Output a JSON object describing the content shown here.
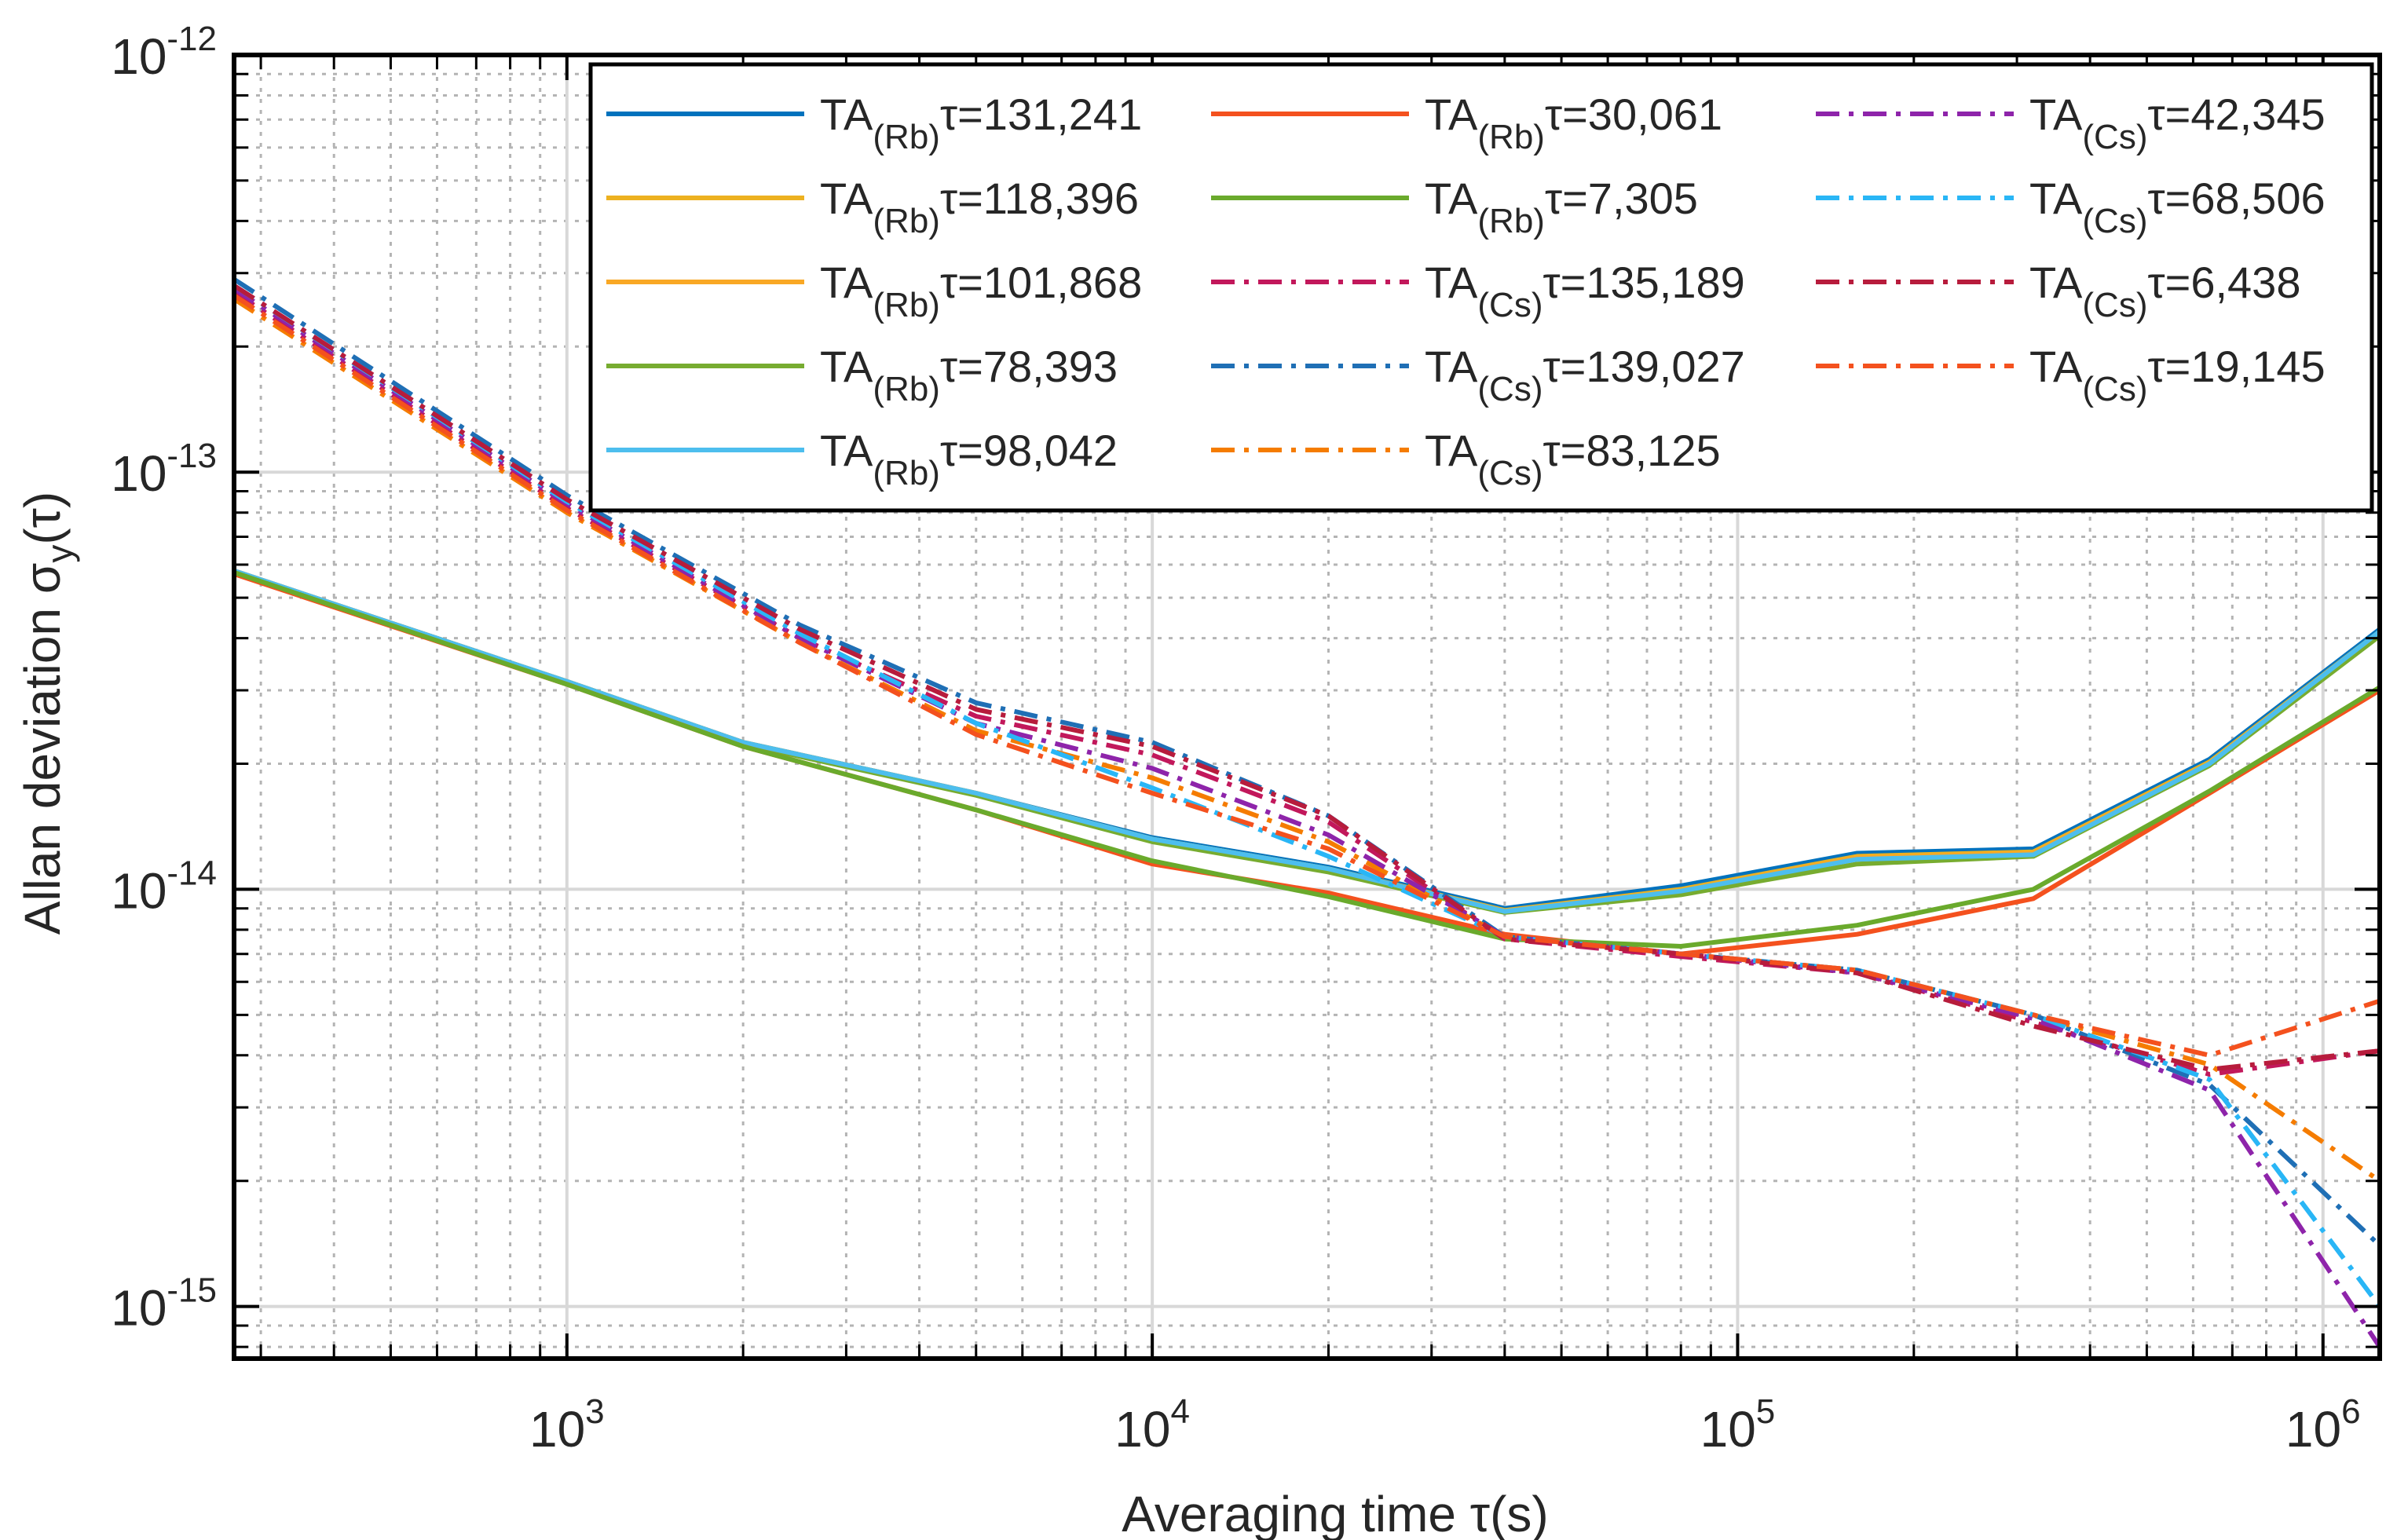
{
  "chart_data": {
    "type": "line",
    "scale": "log-log",
    "xlabel": "Averaging time τ(s)",
    "ylabel": "Allan deviation σ",
    "ylabel_sub": "y",
    "ylabel_tail": "(τ)",
    "xlim": [
      270,
      1250000
    ],
    "ylim": [
      7.5e-16,
      1e-12
    ],
    "grid": true,
    "x_ticks": [
      {
        "value": 1000,
        "base": "10",
        "exp": "3"
      },
      {
        "value": 10000,
        "base": "10",
        "exp": "4"
      },
      {
        "value": 100000,
        "base": "10",
        "exp": "5"
      },
      {
        "value": 1000000,
        "base": "10",
        "exp": "6"
      }
    ],
    "y_ticks": [
      {
        "value": 1e-12,
        "base": "10",
        "exp": "-12"
      },
      {
        "value": 1e-13,
        "base": "10",
        "exp": "-13"
      },
      {
        "value": 1e-14,
        "base": "10",
        "exp": "-14"
      },
      {
        "value": 1e-15,
        "base": "10",
        "exp": "-15"
      }
    ],
    "legend_position": "top-right",
    "series": [
      {
        "name": "TA",
        "sub": "(Rb)",
        "tail": "τ=131,241",
        "color": "#0072BD",
        "style": "solid",
        "x": [
          270,
          1000,
          2000,
          5000,
          10000,
          20000,
          40000,
          80000,
          160000,
          320000,
          640000,
          1250000
        ],
        "y": [
          5.8e-14,
          3.15e-14,
          2.25e-14,
          1.7e-14,
          1.33e-14,
          1.13e-14,
          9e-15,
          1.02e-14,
          1.22e-14,
          1.25e-14,
          2.05e-14,
          4.2e-14
        ]
      },
      {
        "name": "TA",
        "sub": "(Rb)",
        "tail": "τ=118,396",
        "color": "#EDB120",
        "style": "solid",
        "x": [
          270,
          1000,
          2000,
          5000,
          10000,
          20000,
          40000,
          80000,
          160000,
          320000,
          640000,
          1250000
        ],
        "y": [
          5.8e-14,
          3.15e-14,
          2.25e-14,
          1.7e-14,
          1.32e-14,
          1.12e-14,
          8.9e-15,
          1e-14,
          1.2e-14,
          1.23e-14,
          2.02e-14,
          4.15e-14
        ]
      },
      {
        "name": "TA",
        "sub": "(Rb)",
        "tail": "τ=101,868",
        "color": "#F9A825",
        "style": "solid",
        "x": [
          270,
          1000,
          2000,
          5000,
          10000,
          20000,
          40000,
          80000,
          160000,
          320000,
          640000,
          1250000
        ],
        "y": [
          5.8e-14,
          3.15e-14,
          2.25e-14,
          1.7e-14,
          1.32e-14,
          1.12e-14,
          8.85e-15,
          9.9e-15,
          1.19e-14,
          1.22e-14,
          2e-14,
          4.1e-14
        ]
      },
      {
        "name": "TA",
        "sub": "(Rb)",
        "tail": "τ=78,393",
        "color": "#77AC30",
        "style": "solid",
        "x": [
          270,
          1000,
          2000,
          5000,
          10000,
          20000,
          40000,
          80000,
          160000,
          320000,
          640000,
          1250000
        ],
        "y": [
          5.75e-14,
          3.12e-14,
          2.23e-14,
          1.68e-14,
          1.3e-14,
          1.1e-14,
          8.8e-15,
          9.7e-15,
          1.15e-14,
          1.2e-14,
          1.98e-14,
          4.05e-14
        ]
      },
      {
        "name": "TA",
        "sub": "(Rb)",
        "tail": "τ=98,042",
        "color": "#4DBEEE",
        "style": "solid",
        "x": [
          270,
          1000,
          2000,
          5000,
          10000,
          20000,
          40000,
          80000,
          160000,
          320000,
          640000,
          1250000
        ],
        "y": [
          5.8e-14,
          3.15e-14,
          2.25e-14,
          1.7e-14,
          1.32e-14,
          1.12e-14,
          8.85e-15,
          9.9e-15,
          1.18e-14,
          1.21e-14,
          2e-14,
          4.15e-14
        ]
      },
      {
        "name": "TA",
        "sub": "(Rb)",
        "tail": "τ=30,061",
        "color": "#F4511E",
        "style": "solid",
        "x": [
          270,
          1000,
          2000,
          5000,
          10000,
          20000,
          40000,
          80000,
          160000,
          320000,
          640000,
          1250000
        ],
        "y": [
          5.7e-14,
          3.1e-14,
          2.2e-14,
          1.55e-14,
          1.15e-14,
          9.8e-15,
          7.8e-15,
          7e-15,
          7.8e-15,
          9.5e-15,
          1.7e-14,
          3e-14
        ]
      },
      {
        "name": "TA",
        "sub": "(Rb)",
        "tail": "τ=7,305",
        "color": "#6AAA2C",
        "style": "solid",
        "x": [
          270,
          1000,
          2000,
          5000,
          10000,
          20000,
          40000,
          80000,
          160000,
          320000,
          640000,
          1250000
        ],
        "y": [
          5.75e-14,
          3.1e-14,
          2.2e-14,
          1.55e-14,
          1.17e-14,
          9.6e-15,
          7.6e-15,
          7.3e-15,
          8.2e-15,
          1e-14,
          1.72e-14,
          3.05e-14
        ]
      },
      {
        "name": "TA",
        "sub": "(Cs)",
        "tail": "τ=135,189",
        "color": "#C2185B",
        "style": "dashdot",
        "x": [
          270,
          1000,
          2500,
          5000,
          10000,
          20000,
          40000,
          80000,
          160000,
          320000,
          640000,
          1250000
        ],
        "y": [
          2.7e-13,
          8.2e-14,
          4e-14,
          2.6e-14,
          2.1e-14,
          1.45e-14,
          7.6e-15,
          6.9e-15,
          6.3e-15,
          4.8e-15,
          3.6e-15,
          4.1e-15
        ]
      },
      {
        "name": "TA",
        "sub": "(Cs)",
        "tail": "τ=139,027",
        "color": "#1F6FB5",
        "style": "dashdot",
        "x": [
          270,
          1000,
          2500,
          5000,
          10000,
          20000,
          40000,
          80000,
          160000,
          320000,
          640000,
          1250000
        ],
        "y": [
          2.9e-13,
          8.8e-14,
          4.3e-14,
          2.8e-14,
          2.25e-14,
          1.5e-14,
          7.7e-15,
          7e-15,
          6.4e-15,
          5e-15,
          3.4e-15,
          1.4e-15
        ]
      },
      {
        "name": "TA",
        "sub": "(Cs)",
        "tail": "τ=83,125",
        "color": "#F57C00",
        "style": "dashdot",
        "x": [
          270,
          1000,
          2500,
          5000,
          10000,
          20000,
          40000,
          80000,
          160000,
          320000,
          640000,
          1250000
        ],
        "y": [
          2.6e-13,
          8e-14,
          3.9e-14,
          2.4e-14,
          1.85e-14,
          1.3e-14,
          7.7e-15,
          7e-15,
          6.4e-15,
          5e-15,
          3.8e-15,
          2e-15
        ]
      },
      {
        "name": "TA",
        "sub": "(Cs)",
        "tail": "τ=42,345",
        "color": "#8E24AA",
        "style": "dashdot",
        "x": [
          270,
          1000,
          2500,
          5000,
          10000,
          20000,
          40000,
          80000,
          160000,
          320000,
          640000,
          1250000
        ],
        "y": [
          2.75e-13,
          8.4e-14,
          4e-14,
          2.5e-14,
          1.95e-14,
          1.35e-14,
          7.7e-15,
          7e-15,
          6.3e-15,
          4.9e-15,
          3.3e-15,
          8e-16
        ]
      },
      {
        "name": "TA",
        "sub": "(Cs)",
        "tail": "τ=68,506",
        "color": "#29B6F6",
        "style": "dashdot",
        "x": [
          270,
          1000,
          2500,
          5000,
          10000,
          20000,
          40000,
          80000,
          160000,
          320000,
          640000,
          1250000
        ],
        "y": [
          2.8e-13,
          8.5e-14,
          4.1e-14,
          2.5e-14,
          1.75e-14,
          1.2e-14,
          7.7e-15,
          7e-15,
          6.4e-15,
          5e-15,
          3.5e-15,
          1e-15
        ]
      },
      {
        "name": "TA",
        "sub": "(Cs)",
        "tail": "τ=6,438",
        "color": "#B71C3C",
        "style": "dashdot",
        "x": [
          270,
          1000,
          2500,
          5000,
          10000,
          20000,
          40000,
          80000,
          160000,
          320000,
          640000,
          1250000
        ],
        "y": [
          2.8e-13,
          8.6e-14,
          4.2e-14,
          2.7e-14,
          2.2e-14,
          1.5e-14,
          7.6e-15,
          7e-15,
          6.3e-15,
          4.7e-15,
          3.7e-15,
          4.1e-15
        ]
      },
      {
        "name": "TA",
        "sub": "(Cs)",
        "tail": "τ=19,145",
        "color": "#F4511E",
        "style": "dashdot",
        "x": [
          270,
          1000,
          2500,
          5000,
          10000,
          20000,
          40000,
          80000,
          160000,
          320000,
          640000,
          1250000
        ],
        "y": [
          2.65e-13,
          8.1e-14,
          3.9e-14,
          2.35e-14,
          1.7e-14,
          1.25e-14,
          7.7e-15,
          7e-15,
          6.4e-15,
          5e-15,
          4e-15,
          5.4e-15
        ]
      }
    ]
  }
}
